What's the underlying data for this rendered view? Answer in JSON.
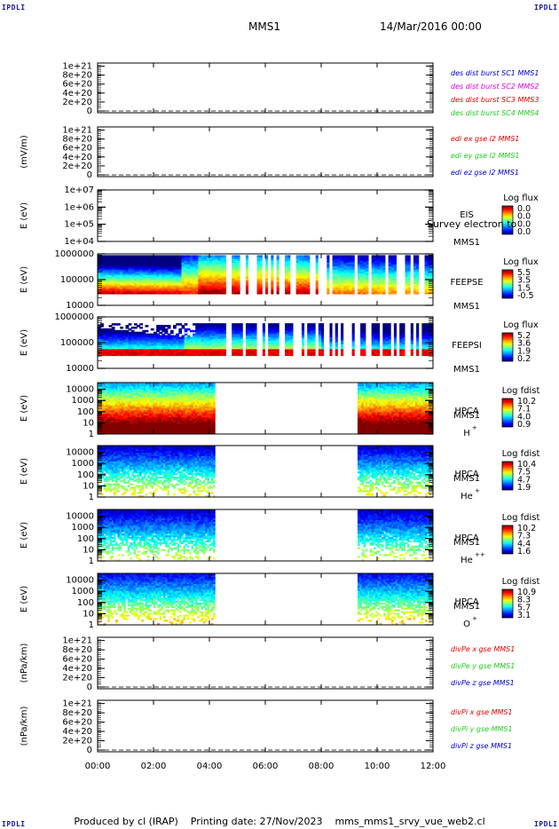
{
  "corners": {
    "top_left": "IPDLI",
    "top_right": "IPDLI",
    "bottom_left": "IPDLI",
    "bottom_right": "IPDLI"
  },
  "header": {
    "mission": "MMS1",
    "datetime": "14/Mar/2016 00:00"
  },
  "footer": {
    "text": "Produced by cl (IRAP)    Printing date: 27/Nov/2023    mms_mms1_srvy_vue_web2.cl"
  },
  "overlay_text": "Survey electron to",
  "colors": {
    "red": "#dd0000",
    "magenta": "#dd00dd",
    "green": "#22cc22",
    "blue": "#0000cc",
    "black": "#000000"
  },
  "chart_data": [
    {
      "id": "p1",
      "type": "line",
      "ylabel": "",
      "yticks": [
        "0",
        "2e+20",
        "4e+20",
        "6e+20",
        "8e+20",
        "1e+21"
      ],
      "ylim": [
        0,
        1e+21
      ],
      "zero_line": "dashed",
      "legend": [
        {
          "text": "des dist burst SC1 MMS1",
          "color": "blue"
        },
        {
          "text": "des dist burst SC2 MMS2",
          "color": "magenta"
        },
        {
          "text": "des dist burst SC3 MMS3",
          "color": "red"
        },
        {
          "text": "des dist burst SC4 MMS4",
          "color": "green"
        }
      ]
    },
    {
      "id": "p2",
      "type": "line",
      "ylabel": "(mV/m)",
      "yticks": [
        "0",
        "2e+20",
        "4e+20",
        "6e+20",
        "8e+20",
        "1e+21"
      ],
      "ylim": [
        0,
        1e+21
      ],
      "zero_line": "dashed",
      "legend": [
        {
          "text": "edi ex gse l2 MMS1",
          "color": "red"
        },
        {
          "text": "edi ey gse l2 MMS1",
          "color": "green"
        },
        {
          "text": "edi ez gse l2 MMS1",
          "color": "blue"
        }
      ]
    },
    {
      "id": "p3",
      "type": "heatmap",
      "ylabel": "E (eV)",
      "yscale": "log",
      "ylim": [
        10000.0,
        10000000.0
      ],
      "yticks": [
        "1e+04",
        "1e+05",
        "1e+06",
        "1e+07"
      ],
      "instrument": [
        "EIS",
        "MMS1"
      ],
      "cbar_title": "Log flux",
      "cbar_ticks": [
        "0.0",
        "0.0",
        "0.0",
        "0.0"
      ],
      "coverage": []
    },
    {
      "id": "p4",
      "type": "heatmap",
      "ylabel": "E (eV)",
      "yscale": "log",
      "ylim": [
        10000.0,
        1000000.0
      ],
      "yticks": [
        "10000",
        "100000",
        "1000000"
      ],
      "instrument": [
        "FEEPSE",
        "MMS1"
      ],
      "cbar_title": "Log flux",
      "cbar_ticks": [
        "5.5",
        "3.5",
        "1.5",
        "-0.5"
      ],
      "coverage": [
        [
          0,
          12
        ]
      ],
      "gaps": "striped 04:40-12:00"
    },
    {
      "id": "p5",
      "type": "heatmap",
      "ylabel": "E (eV)",
      "yscale": "log",
      "ylim": [
        10000.0,
        1000000.0
      ],
      "yticks": [
        "10000",
        "100000",
        "1000000"
      ],
      "instrument": [
        "FEEPSI",
        "MMS1"
      ],
      "cbar_title": "Log flux",
      "cbar_ticks": [
        "5.2",
        "3.6",
        "1.9",
        "0.2"
      ],
      "coverage": [
        [
          0,
          12
        ]
      ],
      "gaps": "striped 04:40-12:00"
    },
    {
      "id": "p6",
      "type": "heatmap",
      "ylabel": "E (eV)",
      "yscale": "log",
      "ylim": [
        1,
        40000
      ],
      "yticks": [
        "1",
        "10",
        "100",
        "1000",
        "10000"
      ],
      "instrument": [
        "HPCA",
        "MMS1"
      ],
      "species": "H",
      "species_sup": "+",
      "cbar_title": "Log fdist",
      "cbar_ticks": [
        "10.2",
        "7.1",
        "4.0",
        "0.9"
      ],
      "coverage": [
        [
          0,
          4.2
        ],
        [
          9.3,
          12
        ]
      ]
    },
    {
      "id": "p7",
      "type": "heatmap",
      "ylabel": "E (eV)",
      "yscale": "log",
      "ylim": [
        1,
        40000
      ],
      "yticks": [
        "1",
        "10",
        "100",
        "1000",
        "10000"
      ],
      "instrument": [
        "HPCA",
        "MMS1"
      ],
      "species": "He",
      "species_sup": "+",
      "cbar_title": "Log fdist",
      "cbar_ticks": [
        "10.4",
        "7.5",
        "4.7",
        "1.9"
      ],
      "coverage": [
        [
          0,
          4.2
        ],
        [
          9.3,
          12
        ]
      ]
    },
    {
      "id": "p8",
      "type": "heatmap",
      "ylabel": "E (eV)",
      "yscale": "log",
      "ylim": [
        1,
        40000
      ],
      "yticks": [
        "1",
        "10",
        "100",
        "1000",
        "10000"
      ],
      "instrument": [
        "HPCA",
        "MMS1"
      ],
      "species": "He",
      "species_sup": "++",
      "cbar_title": "Log fdist",
      "cbar_ticks": [
        "10.2",
        "7.3",
        "4.4",
        "1.6"
      ],
      "coverage": [
        [
          0,
          4.2
        ],
        [
          9.3,
          12
        ]
      ]
    },
    {
      "id": "p9",
      "type": "heatmap",
      "ylabel": "E (eV)",
      "yscale": "log",
      "ylim": [
        1,
        40000
      ],
      "yticks": [
        "1",
        "10",
        "100",
        "1000",
        "10000"
      ],
      "instrument": [
        "HPCA",
        "MMS1"
      ],
      "species": "O",
      "species_sup": "+",
      "cbar_title": "Log fdist",
      "cbar_ticks": [
        "10.9",
        "8.3",
        "5.7",
        "3.1"
      ],
      "coverage": [
        [
          0,
          4.2
        ],
        [
          9.3,
          12
        ]
      ]
    },
    {
      "id": "p10",
      "type": "line",
      "ylabel": "(nPa/km)",
      "yticks": [
        "0",
        "2e+20",
        "4e+20",
        "6e+20",
        "8e+20",
        "1e+21"
      ],
      "ylim": [
        0,
        1e+21
      ],
      "zero_line": "dashed",
      "legend": [
        {
          "text": "divPe x gse MMS1",
          "color": "red"
        },
        {
          "text": "divPe y gse MMS1",
          "color": "green"
        },
        {
          "text": "divPe z gse MMS1",
          "color": "blue"
        }
      ]
    },
    {
      "id": "p11",
      "type": "line",
      "ylabel": "(nPa/km)",
      "yticks": [
        "0",
        "2e+20",
        "4e+20",
        "6e+20",
        "8e+20",
        "1e+21"
      ],
      "ylim": [
        0,
        1e+21
      ],
      "zero_line": "dashed",
      "legend": [
        {
          "text": "divPi x gse MMS1",
          "color": "red"
        },
        {
          "text": "divPi y gse MMS1",
          "color": "green"
        },
        {
          "text": "divPi z gse MMS1",
          "color": "blue"
        }
      ]
    }
  ],
  "time_axis": {
    "xlim_hours": [
      0,
      12
    ],
    "ticks": [
      "00:00",
      "02:00",
      "04:00",
      "06:00",
      "08:00",
      "10:00",
      "12:00"
    ]
  }
}
